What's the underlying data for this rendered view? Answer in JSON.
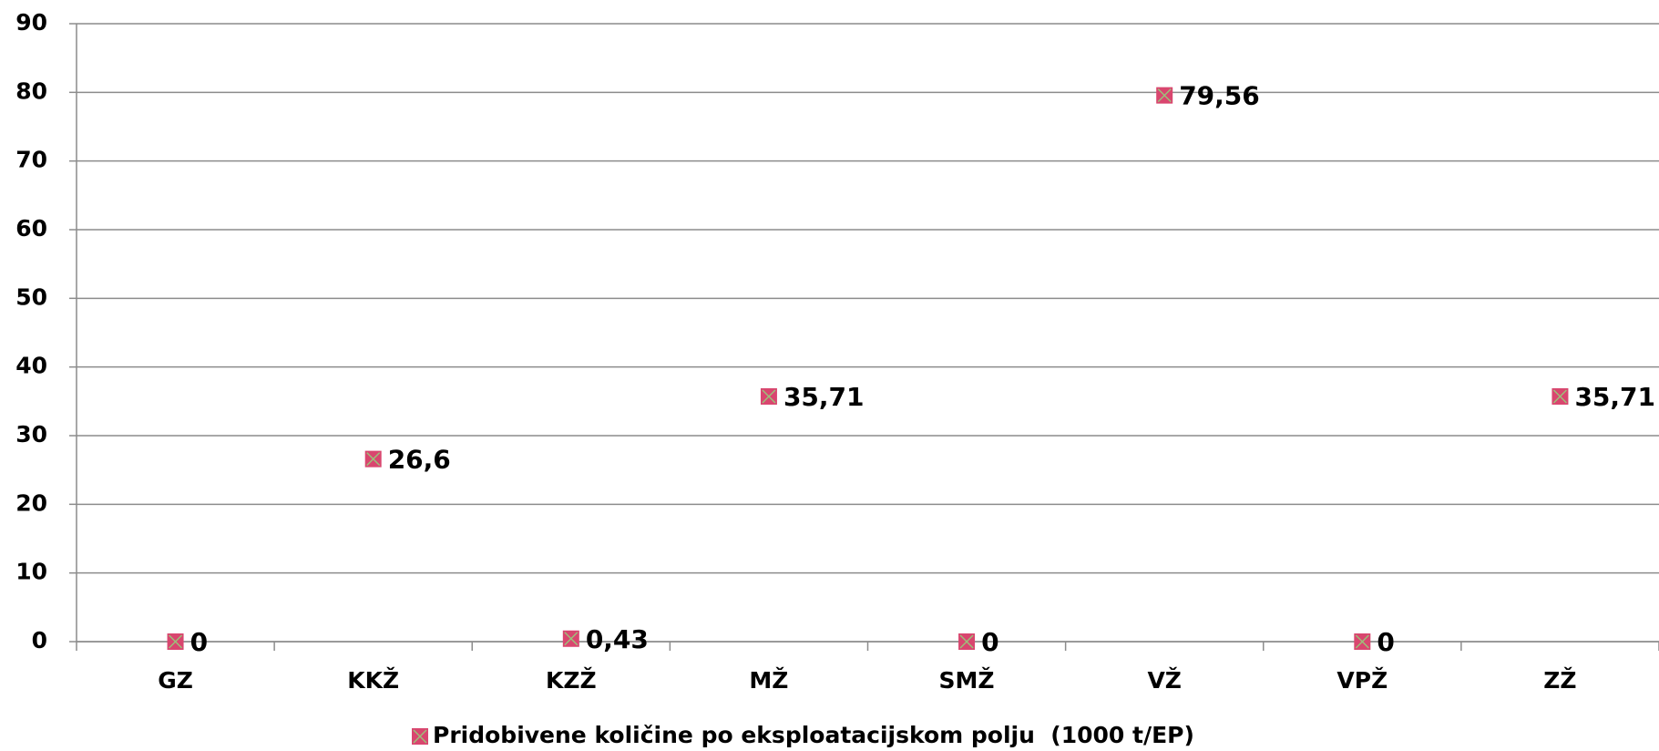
{
  "chart_data": {
    "type": "scatter",
    "categories": [
      "GZ",
      "KKŽ",
      "KZŽ",
      "MŽ",
      "SMŽ",
      "VŽ",
      "VPŽ",
      "ZŽ"
    ],
    "series": [
      {
        "name": "Pridobivene količine po eksploatacijskom polju  (1000 t/EP)",
        "color": "#d9466f",
        "values": [
          0,
          26.6,
          0.43,
          35.71,
          0,
          79.56,
          0,
          35.71
        ],
        "value_labels": [
          "0",
          "26,6",
          "0,43",
          "35,71",
          "0",
          "79,56",
          "0",
          "35,71"
        ]
      }
    ],
    "ylim": [
      0,
      90
    ],
    "yticks": [
      0,
      10,
      20,
      30,
      40,
      50,
      60,
      70,
      80,
      90
    ],
    "grid": true,
    "legend": "bottom"
  }
}
